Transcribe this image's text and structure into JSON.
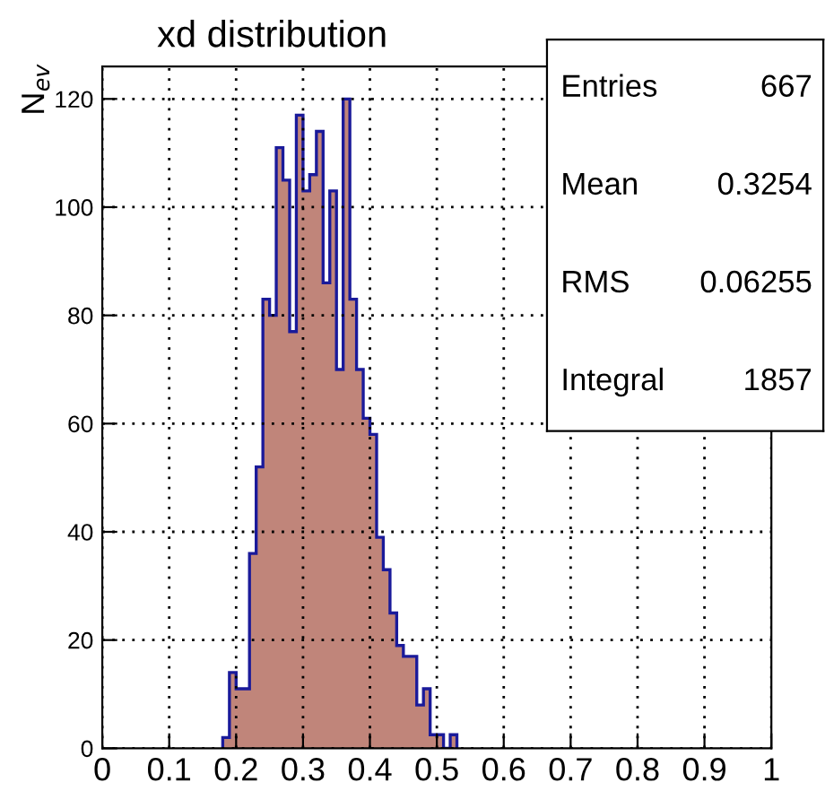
{
  "chart_data": {
    "type": "histogram",
    "title": "xd distribution",
    "ylabel": "N$_{ev}$",
    "bins": [
      0.18,
      0.19,
      0.2,
      0.21,
      0.22,
      0.23,
      0.24,
      0.25,
      0.26,
      0.27,
      0.28,
      0.29,
      0.3,
      0.31,
      0.32,
      0.33,
      0.34,
      0.35,
      0.36,
      0.37,
      0.38,
      0.39,
      0.4,
      0.41,
      0.42,
      0.43,
      0.44,
      0.45,
      0.46,
      0.47,
      0.48,
      0.49,
      0.5,
      0.51,
      0.52,
      0.53
    ],
    "values": [
      2,
      14,
      11,
      11,
      36,
      52,
      83,
      80,
      111,
      105,
      77,
      117,
      103,
      106,
      114,
      86,
      103,
      70,
      120,
      83,
      70,
      61,
      58,
      39,
      33,
      25,
      19,
      17,
      17,
      8,
      11,
      2.5,
      2.5,
      0,
      2.5
    ],
    "color": "#c0857a",
    "xlim": [
      0,
      1
    ],
    "ylim": [
      0,
      126
    ],
    "xticks": [
      0,
      0.1,
      0.2,
      0.3,
      0.4,
      0.5,
      0.6,
      0.7,
      0.8,
      0.9,
      1
    ],
    "yticks": [
      0,
      20,
      40,
      60,
      80,
      100,
      120
    ],
    "grid": true,
    "annotations": [
      "Entries",
      "667",
      "Mean",
      "0.3254",
      "RMS",
      "0.06255",
      "Integral",
      "1857"
    ]
  }
}
